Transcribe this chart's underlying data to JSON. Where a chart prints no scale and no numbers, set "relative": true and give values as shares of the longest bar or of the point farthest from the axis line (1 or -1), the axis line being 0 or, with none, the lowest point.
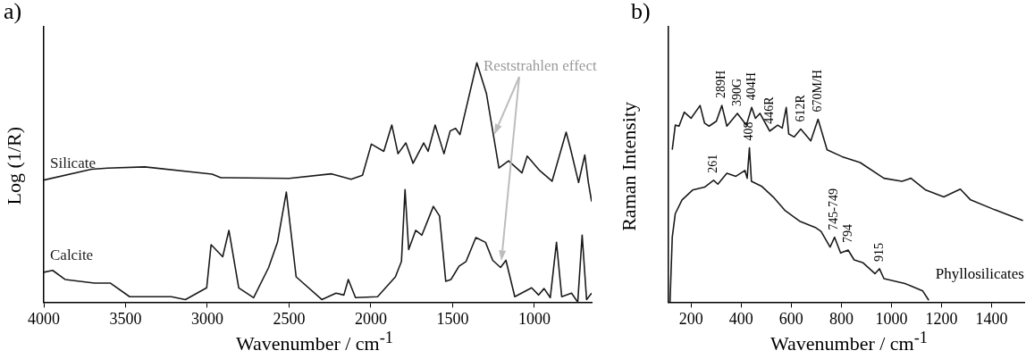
{
  "chart_data": [
    {
      "type": "line",
      "title": "a)",
      "ylabel": "Log (1/R)",
      "xlabel": "Wavenumber / cm$^{-1}$",
      "relative": true,
      "xlim": [
        4000,
        650
      ],
      "xticks": [
        4000,
        3500,
        3000,
        2500,
        2000,
        1500,
        1000
      ],
      "legend": false,
      "grid": false,
      "marker": "none",
      "line_style": "solid",
      "annotations": [
        "Reststrahlen effect"
      ],
      "series": [
        {
          "name": "Silicate",
          "color": "#1a1a1a",
          "x": [
            4000,
            3708,
            3610,
            3383,
            2971,
            2917,
            2500,
            2240,
            2121,
            2051,
            1997,
            1921,
            1872,
            1834,
            1786,
            1742,
            1677,
            1650,
            1607,
            1553,
            1515,
            1482,
            1455,
            1352,
            1293,
            1217,
            1158,
            1076,
            1044,
            968,
            892,
            806,
            779,
            730,
            692,
            670,
            650
          ],
          "values": [
            0.51,
            0.555,
            0.56,
            0.565,
            0.535,
            0.52,
            0.517,
            0.536,
            0.513,
            0.53,
            0.66,
            0.63,
            0.74,
            0.62,
            0.665,
            0.58,
            0.665,
            0.63,
            0.74,
            0.62,
            0.715,
            0.726,
            0.7,
            1.0,
            0.87,
            0.56,
            0.59,
            0.54,
            0.61,
            0.55,
            0.505,
            0.71,
            0.64,
            0.5,
            0.615,
            0.5,
            0.42
          ]
        },
        {
          "name": "Calcite",
          "color": "#1a1a1a",
          "x": [
            4000,
            3946,
            3870,
            3691,
            3594,
            3475,
            3220,
            3134,
            3004,
            2977,
            2906,
            2868,
            2808,
            2717,
            2625,
            2571,
            2517,
            2457,
            2300,
            2213,
            2165,
            2138,
            2094,
            1959,
            1850,
            1813,
            1791,
            1769,
            1726,
            1688,
            1618,
            1580,
            1542,
            1510,
            1461,
            1418,
            1358,
            1299,
            1255,
            1207,
            1174,
            1120,
            1017,
            974,
            941,
            903,
            865,
            833,
            773,
            735,
            708,
            681,
            650
          ],
          "values": [
            0.125,
            0.133,
            0.095,
            0.08,
            0.08,
            0.023,
            0.023,
            0.011,
            0.06,
            0.24,
            0.19,
            0.3,
            0.06,
            0.019,
            0.145,
            0.25,
            0.46,
            0.106,
            0.011,
            0.038,
            0.03,
            0.095,
            0.019,
            0.023,
            0.106,
            0.17,
            0.47,
            0.22,
            0.3,
            0.28,
            0.4,
            0.36,
            0.087,
            0.095,
            0.15,
            0.17,
            0.27,
            0.25,
            0.175,
            0.145,
            0.175,
            0.023,
            0.06,
            0.03,
            0.057,
            0.019,
            0.25,
            0.023,
            0.038,
            0,
            0.28,
            0.011,
            0.038
          ]
        }
      ]
    },
    {
      "type": "line",
      "title": "b)",
      "ylabel": "Raman Intensity",
      "xlabel": "Wavenumber / cm$^{-1}$",
      "relative": true,
      "xlim": [
        110,
        1530
      ],
      "xticks": [
        200,
        400,
        600,
        800,
        1000,
        1200,
        1400
      ],
      "legend": false,
      "grid": false,
      "marker": "none",
      "line_style": "solid",
      "annotations": [
        {
          "text": "289H",
          "x": 323,
          "y": 1.0
        },
        {
          "text": "390G",
          "x": 385,
          "y": 0.96
        },
        {
          "text": "404H",
          "x": 442,
          "y": 0.99
        },
        {
          "text": "446R",
          "x": 514,
          "y": 0.87
        },
        {
          "text": "612R",
          "x": 638,
          "y": 0.88
        },
        {
          "text": "670M/H",
          "x": 707,
          "y": 0.93
        },
        {
          "text": "261",
          "x": 290,
          "y": 0.62
        },
        {
          "text": "408",
          "x": 433,
          "y": 0.785
        },
        {
          "text": "745-749",
          "x": 773,
          "y": 0.33
        },
        {
          "text": "794",
          "x": 827,
          "y": 0.265
        },
        {
          "text": "915",
          "x": 952,
          "y": 0.17
        },
        "Phyllosilicates"
      ],
      "series": [
        {
          "color": "#1a1a1a",
          "x": [
            125,
            137,
            152,
            173,
            200,
            236,
            254,
            272,
            301,
            323,
            343,
            385,
            421,
            442,
            457,
            475,
            514,
            546,
            564,
            580,
            590,
            612,
            638,
            678,
            707,
            743,
            803,
            875,
            970,
            1042,
            1078,
            1137,
            1209,
            1275,
            1316,
            1412,
            1525
          ],
          "values": [
            0.775,
            0.9,
            0.895,
            0.966,
            0.935,
            1.0,
            0.91,
            0.895,
            0.92,
            1.0,
            0.895,
            0.96,
            0.9,
            0.99,
            0.935,
            0.96,
            0.87,
            0.9,
            0.885,
            0.99,
            0.855,
            0.84,
            0.88,
            0.82,
            0.93,
            0.775,
            0.74,
            0.71,
            0.63,
            0.615,
            0.63,
            0.57,
            0.535,
            0.575,
            0.52,
            0.47,
            0.415
          ]
        },
        {
          "color": "#1a1a1a",
          "x": [
            116,
            125,
            137,
            164,
            206,
            254,
            290,
            307,
            343,
            379,
            415,
            424,
            433,
            441,
            481,
            528,
            576,
            636,
            696,
            719,
            755,
            773,
            797,
            827,
            851,
            887,
            934,
            952,
            970,
            1054,
            1125,
            1149
          ],
          "values": [
            0,
            0.33,
            0.45,
            0.52,
            0.57,
            0.585,
            0.62,
            0.6,
            0.655,
            0.64,
            0.67,
            0.63,
            0.785,
            0.615,
            0.59,
            0.535,
            0.465,
            0.41,
            0.38,
            0.36,
            0.28,
            0.33,
            0.25,
            0.265,
            0.215,
            0.2,
            0.145,
            0.17,
            0.12,
            0.095,
            0.057,
            0.01
          ]
        }
      ]
    }
  ]
}
